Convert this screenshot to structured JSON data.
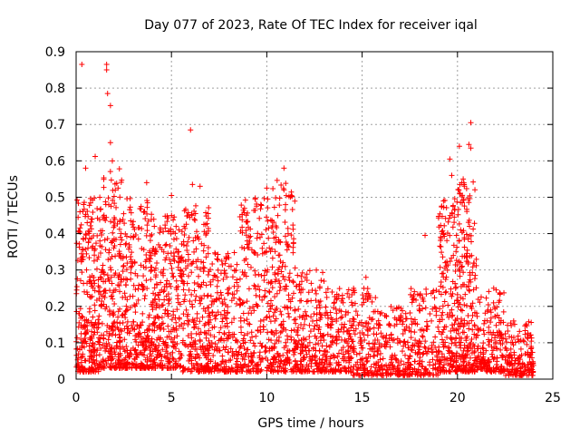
{
  "chart_data": {
    "type": "scatter",
    "title": "Day 077 of 2023, Rate Of TEC Index for receiver iqal",
    "xlabel": "GPS time / hours",
    "ylabel": "ROTI / TECUs",
    "xlim": [
      0,
      25
    ],
    "ylim": [
      0,
      0.9
    ],
    "x_ticks": [
      "0",
      "5",
      "10",
      "15",
      "20",
      "25"
    ],
    "y_ticks": [
      "0",
      "0.1",
      "0.2",
      "0.3",
      "0.4",
      "0.5",
      "0.6",
      "0.7",
      "0.8",
      "0.9"
    ],
    "grid": true,
    "marker": "plus",
    "series": [
      {
        "color": "#ff0000",
        "points": [
          [
            0.3,
            0.865
          ],
          [
            1.6,
            0.865
          ],
          [
            1.6,
            0.85
          ],
          [
            1.65,
            0.785
          ],
          [
            1.8,
            0.752
          ],
          [
            6.0,
            0.685
          ],
          [
            20.7,
            0.705
          ],
          [
            20.6,
            0.645
          ],
          [
            20.7,
            0.635
          ],
          [
            20.1,
            0.64
          ],
          [
            1.0,
            0.612
          ],
          [
            1.9,
            0.6
          ],
          [
            19.6,
            0.605
          ],
          [
            0.5,
            0.58
          ],
          [
            10.9,
            0.58
          ],
          [
            1.8,
            0.65
          ],
          [
            6.1,
            0.535
          ],
          [
            6.5,
            0.53
          ],
          [
            10.0,
            0.525
          ],
          [
            10.9,
            0.52
          ],
          [
            5.0,
            0.505
          ],
          [
            3.7,
            0.54
          ],
          [
            2.2,
            0.525
          ],
          [
            18.3,
            0.395
          ],
          [
            15.2,
            0.28
          ],
          [
            21.9,
            0.25
          ],
          [
            20.6,
            0.245
          ],
          [
            19.7,
            0.56
          ],
          [
            20.3,
            0.55
          ],
          [
            0.2,
            0.46
          ]
        ],
        "clusters": [
          {
            "x0": 0.0,
            "x1": 1.2,
            "ymin": 0.02,
            "ymax": 0.5,
            "n": 260
          },
          {
            "x0": 1.2,
            "x1": 2.4,
            "ymin": 0.03,
            "ymax": 0.58,
            "n": 260
          },
          {
            "x0": 2.4,
            "x1": 4.0,
            "ymin": 0.03,
            "ymax": 0.5,
            "n": 300
          },
          {
            "x0": 4.0,
            "x1": 5.5,
            "ymin": 0.03,
            "ymax": 0.45,
            "n": 270
          },
          {
            "x0": 5.5,
            "x1": 7.0,
            "ymin": 0.02,
            "ymax": 0.48,
            "n": 260
          },
          {
            "x0": 7.0,
            "x1": 8.5,
            "ymin": 0.02,
            "ymax": 0.35,
            "n": 200
          },
          {
            "x0": 8.5,
            "x1": 10.2,
            "ymin": 0.02,
            "ymax": 0.5,
            "n": 240
          },
          {
            "x0": 10.2,
            "x1": 11.5,
            "ymin": 0.02,
            "ymax": 0.55,
            "n": 230
          },
          {
            "x0": 11.5,
            "x1": 13.0,
            "ymin": 0.02,
            "ymax": 0.3,
            "n": 200
          },
          {
            "x0": 13.0,
            "x1": 14.5,
            "ymin": 0.02,
            "ymax": 0.25,
            "n": 180
          },
          {
            "x0": 14.5,
            "x1": 16.0,
            "ymin": 0.01,
            "ymax": 0.25,
            "n": 170
          },
          {
            "x0": 16.0,
            "x1": 17.5,
            "ymin": 0.01,
            "ymax": 0.2,
            "n": 150
          },
          {
            "x0": 17.5,
            "x1": 19.0,
            "ymin": 0.01,
            "ymax": 0.25,
            "n": 160
          },
          {
            "x0": 19.0,
            "x1": 20.0,
            "ymin": 0.02,
            "ymax": 0.5,
            "n": 200
          },
          {
            "x0": 20.0,
            "x1": 21.0,
            "ymin": 0.02,
            "ymax": 0.55,
            "n": 220
          },
          {
            "x0": 21.0,
            "x1": 22.5,
            "ymin": 0.02,
            "ymax": 0.25,
            "n": 180
          },
          {
            "x0": 22.5,
            "x1": 24.0,
            "ymin": 0.01,
            "ymax": 0.16,
            "n": 170
          }
        ]
      }
    ]
  }
}
